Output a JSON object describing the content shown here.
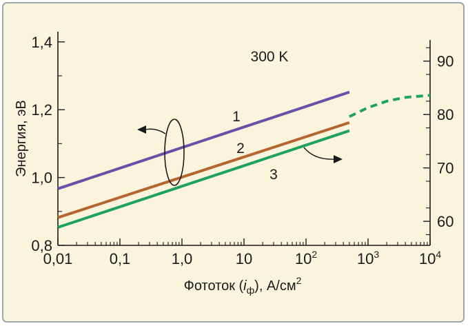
{
  "chart_data": {
    "type": "line",
    "annotation": "300 K",
    "x_scale": "log",
    "xlim": [
      0.01,
      10000
    ],
    "ylim": [
      0.8,
      1.43
    ],
    "ylim_right": [
      55.5,
      95.5
    ],
    "xlabel_parts": {
      "main": "Фототок (",
      "italic": "i",
      "sub": "ф",
      "tail": "), А/см",
      "sup": "2"
    },
    "ylabel": "Энергия, эВ",
    "x_ticks": [
      {
        "value": 0.01,
        "label": "0,01"
      },
      {
        "value": 0.1,
        "label": "0,1"
      },
      {
        "value": 1,
        "label": "1,0"
      },
      {
        "value": 10,
        "label": "10"
      },
      {
        "value": 100,
        "base": "10",
        "exp": "2"
      },
      {
        "value": 1000,
        "base": "10",
        "exp": "3"
      },
      {
        "value": 10000,
        "base": "10",
        "exp": "4"
      }
    ],
    "y_ticks": [
      {
        "value": 0.8,
        "label": "0,8"
      },
      {
        "value": 1.0,
        "label": "1,0"
      },
      {
        "value": 1.2,
        "label": "1,2"
      },
      {
        "value": 1.4,
        "label": "1,4"
      }
    ],
    "y_right_ticks": [
      {
        "value": 60,
        "label": "60"
      },
      {
        "value": 70,
        "label": "70"
      },
      {
        "value": 80,
        "label": "80"
      },
      {
        "value": 90,
        "label": "90"
      }
    ],
    "series": [
      {
        "name": "1",
        "axis": "left",
        "color": "#6a4fa8",
        "x": [
          0.01,
          500
        ],
        "y": [
          0.967,
          1.252
        ]
      },
      {
        "name": "2",
        "axis": "left",
        "color": "#b5652e",
        "x": [
          0.01,
          500
        ],
        "y": [
          0.882,
          1.162
        ]
      },
      {
        "name": "3",
        "axis": "left",
        "color": "#1ea35a",
        "x": [
          0.01,
          500
        ],
        "y": [
          0.853,
          1.138
        ],
        "extension": {
          "axis": "right",
          "dashed": true,
          "x": [
            500,
            1000,
            2000,
            4000,
            10000
          ],
          "y": [
            79.6,
            81.3,
            82.5,
            83.2,
            83.6
          ]
        }
      }
    ]
  }
}
